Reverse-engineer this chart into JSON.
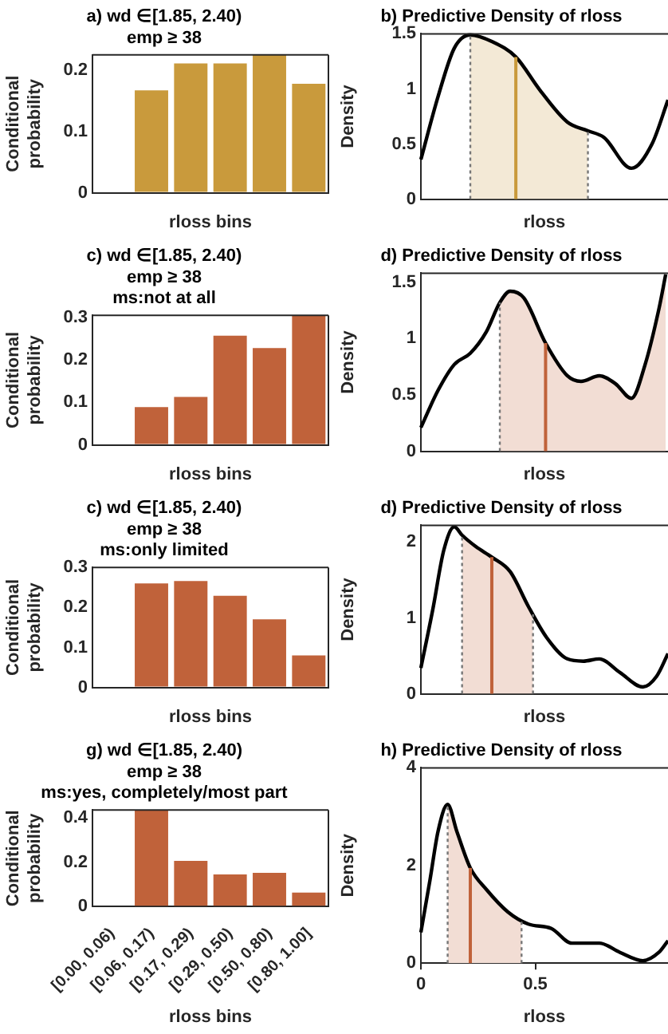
{
  "chart_data": [
    {
      "type": "bar",
      "title": "a) wd ∈[1.85, 2.40)\nemp ≥ 38",
      "xlabel": "rloss bins",
      "ylabel": "Conditional probability",
      "categories": [
        null,
        null,
        null,
        null,
        null,
        null
      ],
      "values": [
        0,
        0.167,
        0.211,
        0.211,
        0.225,
        0.178
      ],
      "color": "#c99a3c",
      "ylim": [
        0,
        0.225
      ],
      "yticks": [
        0,
        0.1,
        0.2
      ],
      "tick_labels": "y"
    },
    {
      "type": "line",
      "title": "b) Predictive Density of rloss",
      "xlabel": "rloss",
      "ylabel": "Density",
      "series": [
        {
          "type": "line",
          "color": "#000000",
          "x": [
            0,
            0.075,
            0.146,
            0.216,
            0.31,
            0.415,
            0.52,
            0.64,
            0.73,
            0.8,
            0.92,
            1.01,
            1.08
          ],
          "values": [
            0.36,
            0.93,
            1.37,
            1.49,
            1.43,
            1.29,
            0.99,
            0.7,
            0.62,
            0.56,
            0.28,
            0.5,
            0.9
          ]
        },
        {
          "type": "area",
          "color": "#f3e9d6",
          "x": [
            0.216,
            0.31,
            0.415,
            0.52,
            0.64,
            0.73
          ],
          "values": [
            1.49,
            1.43,
            1.29,
            0.99,
            0.7,
            0.62
          ]
        }
      ],
      "xlim": [
        0,
        1.08
      ],
      "ylim": [
        0,
        1.5
      ],
      "yticks": [
        0,
        0.5,
        1,
        1.5
      ],
      "tick_labels": "y",
      "marker": "none",
      "ref_lines": [
        {
          "axis": "x",
          "value": 0.216,
          "color": "#777777",
          "line_style": "dotted"
        },
        {
          "axis": "x",
          "value": 0.73,
          "color": "#777777",
          "line_style": "dotted"
        },
        {
          "axis": "x",
          "value": 0.415,
          "color": "#c99a3c",
          "line_style": "solid"
        }
      ]
    },
    {
      "type": "bar",
      "title": "c) wd ∈[1.85, 2.40)\nemp ≥ 38\nms:not at all",
      "xlabel": "rloss bins",
      "ylabel": "Conditional probability",
      "categories": [
        null,
        null,
        null,
        null,
        null,
        null
      ],
      "values": [
        0,
        0.089,
        0.113,
        0.257,
        0.228,
        0.305
      ],
      "color": "#c0623a",
      "ylim": [
        0,
        0.305
      ],
      "yticks": [
        0,
        0.1,
        0.2,
        0.3
      ],
      "tick_labels": "y"
    },
    {
      "type": "line",
      "title": "d) Predictive Density of rloss",
      "xlabel": "rloss",
      "ylabel": "Density",
      "series": [
        {
          "type": "line",
          "color": "#000000",
          "x": [
            0,
            0.075,
            0.146,
            0.216,
            0.286,
            0.345,
            0.39,
            0.45,
            0.545,
            0.64,
            0.7,
            0.78,
            0.85,
            0.92,
            0.98,
            1.04,
            1.07
          ],
          "values": [
            0.21,
            0.54,
            0.77,
            0.87,
            1.06,
            1.32,
            1.42,
            1.36,
            0.96,
            0.67,
            0.62,
            0.67,
            0.6,
            0.47,
            0.77,
            1.26,
            1.57
          ]
        },
        {
          "type": "area",
          "color": "#f2ddd4",
          "x": [
            0.345,
            0.39,
            0.45,
            0.545,
            0.64,
            0.7,
            0.78,
            0.85,
            0.92,
            0.98,
            1.04,
            1.07
          ],
          "values": [
            1.32,
            1.42,
            1.36,
            0.96,
            0.67,
            0.62,
            0.67,
            0.6,
            0.47,
            0.77,
            1.26,
            1.57
          ]
        }
      ],
      "xlim": [
        0,
        1.08
      ],
      "ylim": [
        0,
        1.58
      ],
      "yticks": [
        0,
        0.5,
        1,
        1.5
      ],
      "tick_labels": "y",
      "marker": "none",
      "ref_lines": [
        {
          "axis": "x",
          "value": 0.345,
          "color": "#777777",
          "line_style": "dotted"
        },
        {
          "axis": "x",
          "value": 0.545,
          "color": "#c0623a",
          "line_style": "solid"
        }
      ]
    },
    {
      "type": "bar",
      "title": "c) wd ∈[1.85, 2.40)\nemp ≥ 38\nms:only limited",
      "xlabel": "rloss bins",
      "ylabel": "Conditional probability",
      "categories": [
        null,
        null,
        null,
        null,
        null,
        null
      ],
      "values": [
        0,
        0.26,
        0.266,
        0.229,
        0.17,
        0.08
      ],
      "color": "#c0623a",
      "ylim": [
        0,
        0.3
      ],
      "yticks": [
        0,
        0.1,
        0.2,
        0.3
      ],
      "tick_labels": "y"
    },
    {
      "type": "line",
      "title": "d) Predictive Density of rloss",
      "xlabel": "rloss",
      "ylabel": "Density",
      "series": [
        {
          "type": "line",
          "color": "#000000",
          "x": [
            0,
            0.052,
            0.1,
            0.146,
            0.18,
            0.24,
            0.31,
            0.39,
            0.47,
            0.55,
            0.64,
            0.71,
            0.78,
            0.87,
            0.97,
            1.03,
            1.08
          ],
          "values": [
            0.34,
            1.11,
            1.89,
            2.2,
            2.09,
            1.94,
            1.8,
            1.61,
            1.15,
            0.74,
            0.46,
            0.43,
            0.46,
            0.28,
            0.09,
            0.23,
            0.53
          ]
        },
        {
          "type": "area",
          "color": "#f2ddd4",
          "x": [
            0.18,
            0.24,
            0.31,
            0.39,
            0.47,
            0.49
          ],
          "values": [
            2.09,
            1.94,
            1.8,
            1.61,
            1.15,
            1.05
          ]
        }
      ],
      "xlim": [
        0,
        1.08
      ],
      "ylim": [
        0,
        2.22
      ],
      "yticks": [
        0,
        1,
        2
      ],
      "tick_labels": "y",
      "marker": "none",
      "ref_lines": [
        {
          "axis": "x",
          "value": 0.18,
          "color": "#777777",
          "line_style": "dotted"
        },
        {
          "axis": "x",
          "value": 0.49,
          "color": "#777777",
          "line_style": "dotted"
        },
        {
          "axis": "x",
          "value": 0.31,
          "color": "#c0623a",
          "line_style": "solid"
        }
      ]
    },
    {
      "type": "bar",
      "title": "g) wd ∈[1.85, 2.40)\nemp ≥ 38\nms:yes, completely/most part",
      "xlabel": "rloss bins",
      "ylabel": "Conditional probability",
      "categories": [
        "[0.00, 0.06)",
        "[0.06, 0.17)",
        "[0.17, 0.29)",
        "[0.29, 0.50)",
        "[0.50, 0.80)",
        "[0.80, 1.00]"
      ],
      "values": [
        0,
        0.436,
        0.206,
        0.145,
        0.152,
        0.063
      ],
      "color": "#c0623a",
      "ylim": [
        0,
        0.436
      ],
      "yticks": [
        0,
        0.2,
        0.4
      ]
    },
    {
      "type": "line",
      "title": "h) Predictive Density of rloss",
      "xlabel": "rloss",
      "ylabel": "Density",
      "series": [
        {
          "type": "line",
          "color": "#000000",
          "x": [
            0,
            0.04,
            0.075,
            0.117,
            0.157,
            0.216,
            0.286,
            0.38,
            0.47,
            0.57,
            0.66,
            0.78,
            0.87,
            0.97,
            1.04,
            1.08
          ],
          "values": [
            0.63,
            1.71,
            2.7,
            3.25,
            2.7,
            1.95,
            1.51,
            1.05,
            0.8,
            0.71,
            0.41,
            0.41,
            0.22,
            0.05,
            0.22,
            0.46
          ]
        },
        {
          "type": "area",
          "color": "#f2ddd4",
          "x": [
            0.117,
            0.157,
            0.216,
            0.286,
            0.38,
            0.44
          ],
          "values": [
            3.25,
            2.7,
            1.95,
            1.51,
            1.05,
            0.88
          ]
        }
      ],
      "xlim": [
        0,
        1.08
      ],
      "xticks": [
        0,
        0.5
      ],
      "ylim": [
        0,
        4
      ],
      "yticks": [
        0,
        2,
        4
      ],
      "marker": "none",
      "ref_lines": [
        {
          "axis": "x",
          "value": 0.117,
          "color": "#777777",
          "line_style": "dotted"
        },
        {
          "axis": "x",
          "value": 0.44,
          "color": "#777777",
          "line_style": "dotted"
        },
        {
          "axis": "x",
          "value": 0.216,
          "color": "#c0623a",
          "line_style": "solid"
        }
      ]
    }
  ]
}
